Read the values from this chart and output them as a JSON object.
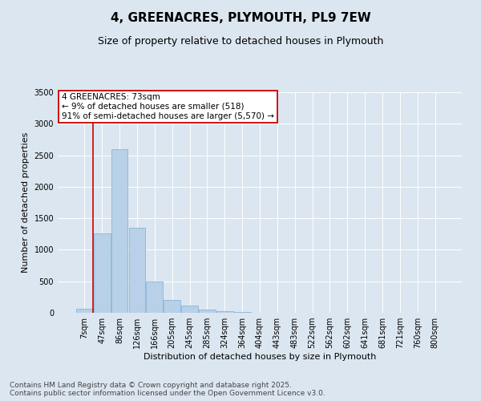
{
  "title": "4, GREENACRES, PLYMOUTH, PL9 7EW",
  "subtitle": "Size of property relative to detached houses in Plymouth",
  "xlabel": "Distribution of detached houses by size in Plymouth",
  "ylabel": "Number of detached properties",
  "categories": [
    "7sqm",
    "47sqm",
    "86sqm",
    "126sqm",
    "166sqm",
    "205sqm",
    "245sqm",
    "285sqm",
    "324sqm",
    "364sqm",
    "404sqm",
    "443sqm",
    "483sqm",
    "522sqm",
    "562sqm",
    "602sqm",
    "641sqm",
    "681sqm",
    "721sqm",
    "760sqm",
    "800sqm"
  ],
  "values": [
    60,
    1255,
    2600,
    1350,
    500,
    200,
    120,
    55,
    30,
    10,
    5,
    3,
    0,
    0,
    0,
    0,
    0,
    0,
    0,
    0,
    0
  ],
  "bar_color": "#b8d0e8",
  "bar_edge_color": "#7aafd4",
  "annotation_text_line1": "4 GREENACRES: 73sqm",
  "annotation_text_line2": "← 9% of detached houses are smaller (518)",
  "annotation_text_line3": "91% of semi-detached houses are larger (5,570) →",
  "annotation_box_facecolor": "#ffffff",
  "annotation_box_edgecolor": "#cc0000",
  "red_line_color": "#cc0000",
  "ylim": [
    0,
    3500
  ],
  "yticks": [
    0,
    500,
    1000,
    1500,
    2000,
    2500,
    3000,
    3500
  ],
  "bg_color": "#dce6f0",
  "plot_bg_color": "#dce6f0",
  "grid_color": "#ffffff",
  "footer_line1": "Contains HM Land Registry data © Crown copyright and database right 2025.",
  "footer_line2": "Contains public sector information licensed under the Open Government Licence v3.0.",
  "title_fontsize": 11,
  "subtitle_fontsize": 9,
  "xlabel_fontsize": 8,
  "ylabel_fontsize": 8,
  "tick_fontsize": 7,
  "annotation_fontsize": 7.5,
  "footer_fontsize": 6.5
}
